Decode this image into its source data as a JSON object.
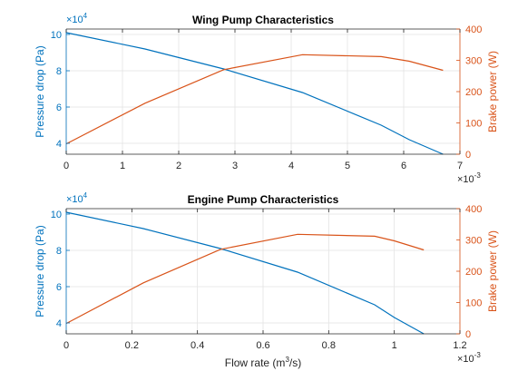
{
  "chart_data": [
    {
      "type": "line",
      "title": "Wing Pump Characteristics",
      "xlabel": "",
      "x_exponent_label": "×10",
      "x_exponent": "-3",
      "xlim": [
        0,
        7
      ],
      "xticks": [
        0,
        1,
        2,
        3,
        4,
        5,
        6,
        7
      ],
      "x_scale": 0.001,
      "left_axis": {
        "label": "Pressure drop (Pa)",
        "exponent_label": "×10",
        "exponent": "4",
        "ylim": [
          3.4,
          10.3
        ],
        "yticks": [
          4,
          6,
          8,
          10
        ],
        "scale": 10000,
        "color": "#0072BD"
      },
      "right_axis": {
        "label": "Brake power (W)",
        "ylim": [
          0,
          400
        ],
        "yticks": [
          0,
          100,
          200,
          300,
          400
        ],
        "color": "#D95319"
      },
      "grid": true,
      "series": [
        {
          "axis": "left",
          "color": "#0072BD",
          "x": [
            0,
            1.4,
            2.8,
            4.2,
            5.6,
            6.1,
            6.7
          ],
          "y": [
            10.1,
            9.2,
            8.1,
            6.8,
            5.0,
            4.2,
            3.4
          ]
        },
        {
          "axis": "right",
          "color": "#D95319",
          "x": [
            0,
            1.4,
            2.8,
            4.2,
            5.6,
            6.1,
            6.7
          ],
          "y": [
            33,
            163,
            270,
            318,
            312,
            297,
            268
          ]
        }
      ]
    },
    {
      "type": "line",
      "title": "Engine Pump Characteristics",
      "xlabel": "Flow rate (m³/s)",
      "xlabel_main": "Flow rate (m",
      "xlabel_sup": "3",
      "xlabel_end": "/s)",
      "x_exponent_label": "×10",
      "x_exponent": "-3",
      "xlim": [
        0,
        1.2
      ],
      "xticks": [
        0,
        0.2,
        0.4,
        0.6,
        0.8,
        1,
        1.2
      ],
      "x_scale": 0.001,
      "left_axis": {
        "label": "Pressure drop (Pa)",
        "exponent_label": "×10",
        "exponent": "4",
        "ylim": [
          3.4,
          10.3
        ],
        "yticks": [
          4,
          6,
          8,
          10
        ],
        "scale": 10000,
        "color": "#0072BD"
      },
      "right_axis": {
        "label": "Brake power (W)",
        "ylim": [
          0,
          400
        ],
        "yticks": [
          0,
          100,
          200,
          300,
          400
        ],
        "color": "#D95319"
      },
      "grid": true,
      "series": [
        {
          "axis": "left",
          "color": "#0072BD",
          "x": [
            0,
            0.235,
            0.47,
            0.705,
            0.94,
            1.0,
            1.09
          ],
          "y": [
            10.1,
            9.2,
            8.1,
            6.8,
            5.0,
            4.3,
            3.4
          ]
        },
        {
          "axis": "right",
          "color": "#D95319",
          "x": [
            0,
            0.235,
            0.47,
            0.705,
            0.94,
            1.0,
            1.09
          ],
          "y": [
            33,
            163,
            270,
            318,
            312,
            297,
            268
          ]
        }
      ]
    }
  ]
}
